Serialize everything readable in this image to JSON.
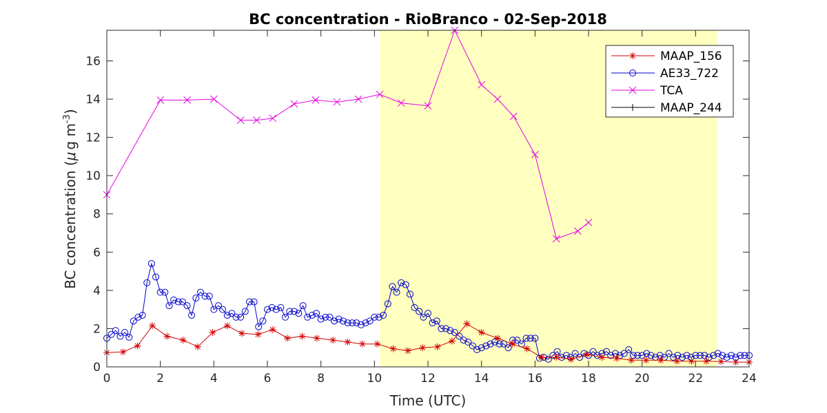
{
  "chart_data": {
    "type": "line",
    "title": "BC concentration  - RioBranco - 02-Sep-2018",
    "xlabel": "Time (UTC)",
    "ylabel_prefix": "BC concentration (",
    "ylabel_mu": "μ",
    "ylabel_unit": "g m",
    "ylabel_exp": "-3",
    "ylabel_suffix": ")",
    "xlim": [
      0,
      24
    ],
    "ylim": [
      0,
      17.6
    ],
    "xticks": [
      0,
      2,
      4,
      6,
      8,
      10,
      12,
      14,
      16,
      18,
      20,
      22,
      24
    ],
    "yticks": [
      0,
      2,
      4,
      6,
      8,
      10,
      12,
      14,
      16
    ],
    "grid": false,
    "legend_position": "top-right",
    "shaded_region": {
      "x_start": 10.2,
      "x_end": 22.8,
      "color": "#ffffbf"
    },
    "series": [
      {
        "name": "MAAP_156",
        "color": "#d40000",
        "marker": "asterisk",
        "x": [
          0,
          0.6,
          1.15,
          1.7,
          2.25,
          2.85,
          3.4,
          3.95,
          4.5,
          5.05,
          5.65,
          6.2,
          6.75,
          7.3,
          7.85,
          8.45,
          9.0,
          9.55,
          10.1,
          10.7,
          11.25,
          11.8,
          12.35,
          12.9,
          13.45,
          14.0,
          14.6,
          15.15,
          15.7,
          16.25,
          16.8,
          17.35,
          17.95,
          18.5,
          19.05,
          19.6,
          20.15,
          20.7,
          21.3,
          21.85,
          22.4,
          22.95,
          23.5,
          24.0
        ],
        "y": [
          0.75,
          0.78,
          1.1,
          2.15,
          1.6,
          1.4,
          1.05,
          1.8,
          2.15,
          1.75,
          1.7,
          1.95,
          1.5,
          1.6,
          1.5,
          1.4,
          1.3,
          1.2,
          1.2,
          0.95,
          0.85,
          1.0,
          1.05,
          1.35,
          2.25,
          1.8,
          1.5,
          1.2,
          0.95,
          0.5,
          0.5,
          0.4,
          0.65,
          0.5,
          0.45,
          0.35,
          0.35,
          0.35,
          0.3,
          0.3,
          0.3,
          0.28,
          0.25,
          0.25
        ]
      },
      {
        "name": "AE33_722",
        "color": "#0000cc",
        "marker": "circle",
        "x": [
          0,
          0.17,
          0.33,
          0.5,
          0.67,
          0.83,
          1.0,
          1.17,
          1.33,
          1.5,
          1.67,
          1.83,
          2.0,
          2.17,
          2.33,
          2.5,
          2.67,
          2.83,
          3.0,
          3.17,
          3.33,
          3.5,
          3.67,
          3.83,
          4.0,
          4.17,
          4.33,
          4.5,
          4.67,
          4.83,
          5.0,
          5.17,
          5.33,
          5.5,
          5.67,
          5.83,
          6.0,
          6.17,
          6.33,
          6.5,
          6.67,
          6.83,
          7.0,
          7.17,
          7.33,
          7.5,
          7.67,
          7.83,
          8.0,
          8.17,
          8.33,
          8.5,
          8.67,
          8.83,
          9.0,
          9.17,
          9.33,
          9.5,
          9.67,
          9.83,
          10.0,
          10.17,
          10.33,
          10.5,
          10.67,
          10.83,
          11.0,
          11.17,
          11.33,
          11.5,
          11.67,
          11.83,
          12.0,
          12.17,
          12.33,
          12.5,
          12.67,
          12.83,
          13.0,
          13.17,
          13.33,
          13.5,
          13.67,
          13.83,
          14.0,
          14.17,
          14.33,
          14.5,
          14.67,
          14.83,
          15.0,
          15.17,
          15.33,
          15.5,
          15.67,
          15.83,
          16.0,
          16.17,
          16.33,
          16.5,
          16.67,
          16.83,
          17.0,
          17.17,
          17.33,
          17.5,
          17.67,
          17.83,
          18.0,
          18.17,
          18.33,
          18.5,
          18.67,
          18.83,
          19.0,
          19.17,
          19.33,
          19.5,
          19.67,
          19.83,
          20.0,
          20.17,
          20.33,
          20.5,
          20.67,
          20.83,
          21.0,
          21.17,
          21.33,
          21.5,
          21.67,
          21.83,
          22.0,
          22.17,
          22.33,
          22.5,
          22.67,
          22.83,
          23.0,
          23.17,
          23.33,
          23.5,
          23.67,
          23.83,
          24.0
        ],
        "y": [
          1.5,
          1.7,
          1.9,
          1.6,
          1.8,
          1.55,
          2.4,
          2.6,
          2.7,
          4.4,
          5.4,
          4.7,
          3.9,
          3.9,
          3.2,
          3.5,
          3.4,
          3.4,
          3.2,
          2.7,
          3.6,
          3.9,
          3.7,
          3.7,
          3.0,
          3.2,
          3.0,
          2.7,
          2.8,
          2.6,
          2.6,
          2.9,
          3.4,
          3.4,
          2.1,
          2.4,
          3.0,
          3.1,
          3.0,
          3.1,
          2.6,
          2.9,
          2.9,
          2.8,
          3.2,
          2.6,
          2.7,
          2.8,
          2.5,
          2.6,
          2.6,
          2.4,
          2.5,
          2.4,
          2.3,
          2.3,
          2.3,
          2.2,
          2.3,
          2.4,
          2.6,
          2.6,
          2.7,
          3.3,
          4.2,
          3.9,
          4.4,
          4.3,
          3.8,
          3.1,
          2.9,
          2.6,
          2.8,
          2.3,
          2.4,
          2.0,
          2.0,
          1.9,
          1.8,
          1.6,
          1.4,
          1.3,
          1.1,
          0.9,
          1.0,
          1.1,
          1.2,
          1.3,
          1.2,
          1.2,
          1.0,
          1.4,
          1.4,
          1.2,
          1.5,
          1.5,
          1.5,
          0.45,
          0.5,
          0.4,
          0.6,
          0.8,
          0.5,
          0.6,
          0.5,
          0.7,
          0.5,
          0.7,
          0.6,
          0.8,
          0.6,
          0.7,
          0.8,
          0.6,
          0.7,
          0.6,
          0.7,
          0.9,
          0.6,
          0.6,
          0.6,
          0.7,
          0.6,
          0.5,
          0.6,
          0.5,
          0.7,
          0.5,
          0.6,
          0.5,
          0.6,
          0.5,
          0.6,
          0.6,
          0.6,
          0.5,
          0.6,
          0.7,
          0.6,
          0.5,
          0.6,
          0.5,
          0.6,
          0.6,
          0.6
        ]
      },
      {
        "name": "TCA",
        "color": "#e600e6",
        "marker": "x",
        "x": [
          0,
          2,
          3,
          4,
          5,
          5.6,
          6.2,
          7.0,
          7.8,
          8.6,
          9.4,
          10.2,
          11.0,
          12.0,
          13.0,
          14.0,
          14.6,
          15.2,
          16.0,
          16.8,
          17.6,
          18.0
        ],
        "y": [
          9.0,
          13.95,
          13.95,
          14.0,
          12.9,
          12.9,
          13.0,
          13.75,
          13.95,
          13.85,
          14.0,
          14.25,
          13.8,
          13.65,
          17.6,
          14.75,
          14.0,
          13.1,
          11.1,
          6.7,
          7.1,
          7.55
        ]
      },
      {
        "name": "MAAP_244",
        "color": "#000000",
        "marker": "plus",
        "x": [],
        "y": []
      }
    ]
  }
}
